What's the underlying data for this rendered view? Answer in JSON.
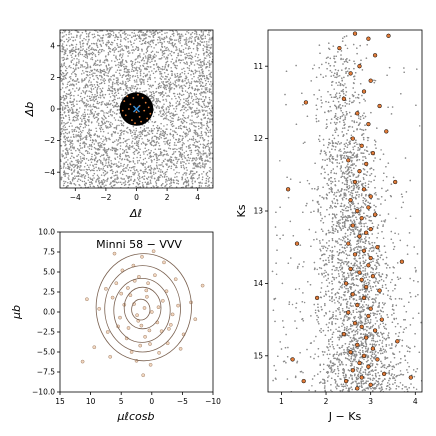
{
  "chart_data": [
    {
      "panel": "sky-map",
      "type": "scatter",
      "xlabel": "Δℓ",
      "ylabel": "Δb",
      "xlim": [
        -5,
        5
      ],
      "ylim": [
        -5,
        5
      ],
      "xticks": [
        "−4",
        "−2",
        "0",
        "2",
        "4"
      ],
      "xtick_values": [
        -4,
        -2,
        0,
        2,
        4
      ],
      "yticks": [
        "−4",
        "−2",
        "0",
        "2",
        "4"
      ],
      "ytick_values": [
        -4,
        -2,
        0,
        2,
        4
      ],
      "field_color": "#8c8c8c",
      "cluster_region": {
        "center": [
          0,
          0
        ],
        "radius": 1.1,
        "color": "#000000"
      },
      "members": [
        [
          -0.4,
          0.3
        ],
        [
          0.2,
          -0.5
        ],
        [
          0.6,
          0.4
        ],
        [
          -0.7,
          -0.4
        ],
        [
          0.5,
          -0.1
        ],
        [
          -0.2,
          0.7
        ],
        [
          0.8,
          0.1
        ],
        [
          -0.5,
          0.0
        ],
        [
          0.1,
          0.9
        ],
        [
          0.3,
          -0.8
        ],
        [
          -0.8,
          0.5
        ],
        [
          0.0,
          -0.2
        ],
        [
          -0.3,
          -0.7
        ],
        [
          0.7,
          -0.6
        ],
        [
          0.4,
          0.7
        ],
        [
          -0.6,
          0.8
        ],
        [
          0.9,
          -0.3
        ],
        [
          -0.9,
          -0.1
        ],
        [
          0.2,
          0.2
        ],
        [
          -0.1,
          -0.9
        ]
      ],
      "center_marker": {
        "x": 0,
        "y": 0,
        "symbol": "x",
        "color": "#3b8fd6"
      },
      "member_color": "#e07b39"
    },
    {
      "panel": "proper-motion",
      "type": "scatter",
      "annotation": "Minni 58 − VVV",
      "xlabel": "μℓcosb",
      "ylabel": "μb",
      "xlim": [
        15,
        -10
      ],
      "ylim": [
        -10,
        10
      ],
      "xticks": [
        "15",
        "10",
        "5",
        "0",
        "−5",
        "−10"
      ],
      "xtick_values": [
        15,
        10,
        5,
        0,
        -5,
        -10
      ],
      "yticks": [
        "−10.0",
        "−7.5",
        "−5.0",
        "−2.5",
        "0.0",
        "2.5",
        "5.0",
        "7.5",
        "10.0"
      ],
      "ytick_values": [
        -10,
        -7.5,
        -5,
        -2.5,
        0,
        2.5,
        5,
        7.5,
        10
      ],
      "member_color": "#e8b48a",
      "member_edge": "#8a6a50",
      "contour_color": "#7a6150",
      "contours": [
        {
          "center": [
            1.8,
            0.3
          ],
          "rx": 1.5,
          "ry": 1.3
        },
        {
          "center": [
            1.5,
            0.5
          ],
          "rx": 3.0,
          "ry": 2.6
        },
        {
          "center": [
            1.6,
            0.2
          ],
          "rx": 4.6,
          "ry": 4.0
        },
        {
          "center": [
            1.5,
            0.4
          ],
          "rx": 6.2,
          "ry": 5.4
        },
        {
          "center": [
            1.3,
            0.6
          ],
          "rx": 7.8,
          "ry": 6.7
        }
      ],
      "points": [
        [
          1.2,
          0.5
        ],
        [
          3.5,
          2.1
        ],
        [
          -1.8,
          1.4
        ],
        [
          0.4,
          -2.3
        ],
        [
          5.2,
          -0.7
        ],
        [
          2.8,
          3.9
        ],
        [
          -3.1,
          -1.6
        ],
        [
          1.9,
          -4.2
        ],
        [
          6.4,
          1.8
        ],
        [
          -0.5,
          4.6
        ],
        [
          4.1,
          -3.3
        ],
        [
          -2.6,
          -3.9
        ],
        [
          0.9,
          2.7
        ],
        [
          2.2,
          -1.1
        ],
        [
          -4.3,
          0.8
        ],
        [
          7.2,
          -2.5
        ],
        [
          3.0,
          5.8
        ],
        [
          -1.2,
          -5.1
        ],
        [
          5.8,
          3.6
        ],
        [
          -5.2,
          -2.8
        ],
        [
          1.6,
          6.9
        ],
        [
          8.6,
          0.4
        ],
        [
          -3.9,
          4.1
        ],
        [
          0.2,
          -6.6
        ],
        [
          4.8,
          5.2
        ],
        [
          -6.4,
          1.2
        ],
        [
          2.5,
          -6.1
        ],
        [
          9.4,
          -4.4
        ],
        [
          -2.0,
          6.2
        ],
        [
          6.8,
          -5.6
        ],
        [
          0.0,
          0.0
        ],
        [
          2.9,
          1.0
        ],
        [
          -0.9,
          -1.3
        ],
        [
          3.8,
          -2.0
        ],
        [
          1.1,
          -3.1
        ],
        [
          -2.4,
          2.6
        ],
        [
          4.5,
          0.9
        ],
        [
          0.6,
          3.6
        ],
        [
          -1.6,
          -2.4
        ],
        [
          5.5,
          -1.8
        ],
        [
          2.1,
          4.4
        ],
        [
          -3.4,
          -0.3
        ],
        [
          7.5,
          2.9
        ],
        [
          -4.7,
          -4.6
        ],
        [
          3.3,
          -5.0
        ],
        [
          -0.3,
          7.6
        ],
        [
          10.6,
          1.6
        ],
        [
          -7.1,
          -0.9
        ],
        [
          1.4,
          -7.9
        ],
        [
          11.3,
          -6.2
        ],
        [
          -8.3,
          3.3
        ],
        [
          6.1,
          7.3
        ],
        [
          0.8,
          1.9
        ],
        [
          2.4,
          -0.4
        ],
        [
          -1.1,
          0.6
        ],
        [
          1.7,
          -1.7
        ],
        [
          3.9,
          3.0
        ],
        [
          -2.8,
          -2.1
        ],
        [
          5.0,
          2.3
        ],
        [
          0.3,
          -4.0
        ]
      ]
    },
    {
      "panel": "cmd",
      "type": "scatter",
      "xlabel": "J − Ks",
      "ylabel": "Ks",
      "xlim": [
        0.7,
        4.15
      ],
      "ylim": [
        15.5,
        10.5
      ],
      "xticks": [
        "1",
        "2",
        "3",
        "4"
      ],
      "xtick_values": [
        1,
        2,
        3,
        4
      ],
      "yticks": [
        "11",
        "12",
        "13",
        "14",
        "15"
      ],
      "ytick_values": [
        11,
        12,
        13,
        14,
        15
      ],
      "field_color": "#8c8c8c",
      "member_color": "#e07b39",
      "member_edge": "#000000",
      "members": [
        [
          2.65,
          10.55
        ],
        [
          2.95,
          10.62
        ],
        [
          3.4,
          10.58
        ],
        [
          2.3,
          10.75
        ],
        [
          3.1,
          10.85
        ],
        [
          2.75,
          11.0
        ],
        [
          2.55,
          11.1
        ],
        [
          3.0,
          11.2
        ],
        [
          2.85,
          11.35
        ],
        [
          2.4,
          11.45
        ],
        [
          3.2,
          11.55
        ],
        [
          1.55,
          11.5
        ],
        [
          2.7,
          11.65
        ],
        [
          2.95,
          11.8
        ],
        [
          3.35,
          11.9
        ],
        [
          2.6,
          12.0
        ],
        [
          2.8,
          12.1
        ],
        [
          3.05,
          12.2
        ],
        [
          2.5,
          12.3
        ],
        [
          2.9,
          12.35
        ],
        [
          2.75,
          12.45
        ],
        [
          1.15,
          12.7
        ],
        [
          3.55,
          12.6
        ],
        [
          2.65,
          12.6
        ],
        [
          2.85,
          12.7
        ],
        [
          3.0,
          12.8
        ],
        [
          2.55,
          12.85
        ],
        [
          2.95,
          12.95
        ],
        [
          2.7,
          13.0
        ],
        [
          3.1,
          13.05
        ],
        [
          2.8,
          13.1
        ],
        [
          2.6,
          13.2
        ],
        [
          3.0,
          13.25
        ],
        [
          2.9,
          13.3
        ],
        [
          1.35,
          13.45
        ],
        [
          2.75,
          13.35
        ],
        [
          2.5,
          13.45
        ],
        [
          3.15,
          13.5
        ],
        [
          2.85,
          13.55
        ],
        [
          2.65,
          13.6
        ],
        [
          3.0,
          13.65
        ],
        [
          3.7,
          13.7
        ],
        [
          2.95,
          13.75
        ],
        [
          2.55,
          13.8
        ],
        [
          2.75,
          13.85
        ],
        [
          3.05,
          13.9
        ],
        [
          2.8,
          13.95
        ],
        [
          2.45,
          14.0
        ],
        [
          2.9,
          14.05
        ],
        [
          3.2,
          14.1
        ],
        [
          2.6,
          14.15
        ],
        [
          2.85,
          14.2
        ],
        [
          1.8,
          14.2
        ],
        [
          2.7,
          14.3
        ],
        [
          3.0,
          14.35
        ],
        [
          2.5,
          14.4
        ],
        [
          2.95,
          14.45
        ],
        [
          3.25,
          14.5
        ],
        [
          2.65,
          14.55
        ],
        [
          2.8,
          14.6
        ],
        [
          3.1,
          14.65
        ],
        [
          2.4,
          14.7
        ],
        [
          2.9,
          14.75
        ],
        [
          3.6,
          14.8
        ],
        [
          2.7,
          14.85
        ],
        [
          3.05,
          14.9
        ],
        [
          2.55,
          14.95
        ],
        [
          2.85,
          15.0
        ],
        [
          1.25,
          15.05
        ],
        [
          3.15,
          15.05
        ],
        [
          2.75,
          15.1
        ],
        [
          2.95,
          15.15
        ],
        [
          2.6,
          15.2
        ],
        [
          3.3,
          15.25
        ],
        [
          2.8,
          15.3
        ],
        [
          2.45,
          15.35
        ],
        [
          3.0,
          15.4
        ],
        [
          1.5,
          15.35
        ],
        [
          3.9,
          15.3
        ],
        [
          2.7,
          15.45
        ]
      ]
    }
  ]
}
